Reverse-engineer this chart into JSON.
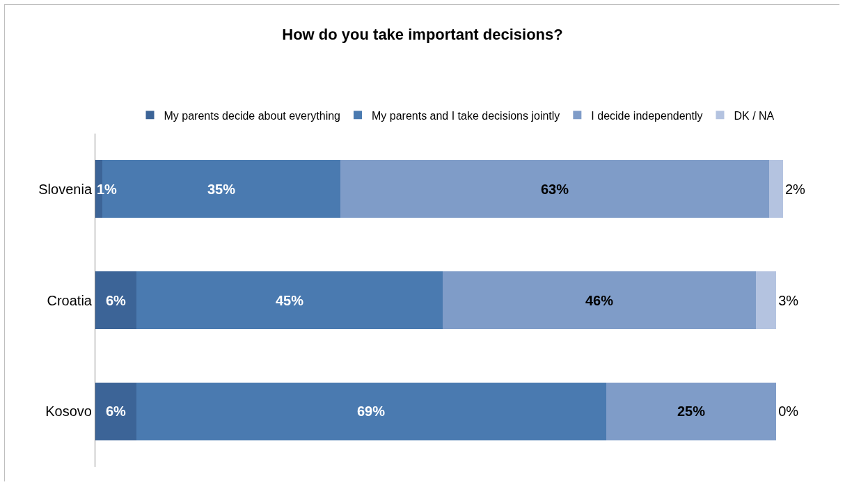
{
  "chart_data": {
    "type": "bar",
    "orientation": "horizontal",
    "stacked": true,
    "title": "How do you take important decisions?",
    "categories": [
      "Slovenia",
      "Croatia",
      "Kosovo"
    ],
    "series": [
      {
        "name": "My parents decide about everything",
        "color": "#3c6497",
        "values": [
          1,
          6,
          6
        ],
        "value_labels": [
          "1%",
          "6%",
          "6%"
        ]
      },
      {
        "name": "My parents and I take decisions jointly",
        "color": "#4a7ab0",
        "values": [
          35,
          45,
          69
        ],
        "value_labels": [
          "35%",
          "45%",
          "69%"
        ]
      },
      {
        "name": "I decide independently",
        "color": "#7f9cc8",
        "values": [
          63,
          46,
          25
        ],
        "value_labels": [
          "63%",
          "46%",
          "25%"
        ]
      },
      {
        "name": "DK / NA",
        "color": "#b4c3e0",
        "values": [
          2,
          3,
          0
        ],
        "value_labels": [
          "2%",
          "3%",
          "0%"
        ]
      }
    ],
    "legend": "top",
    "grid": false,
    "tick_labels": "y"
  }
}
